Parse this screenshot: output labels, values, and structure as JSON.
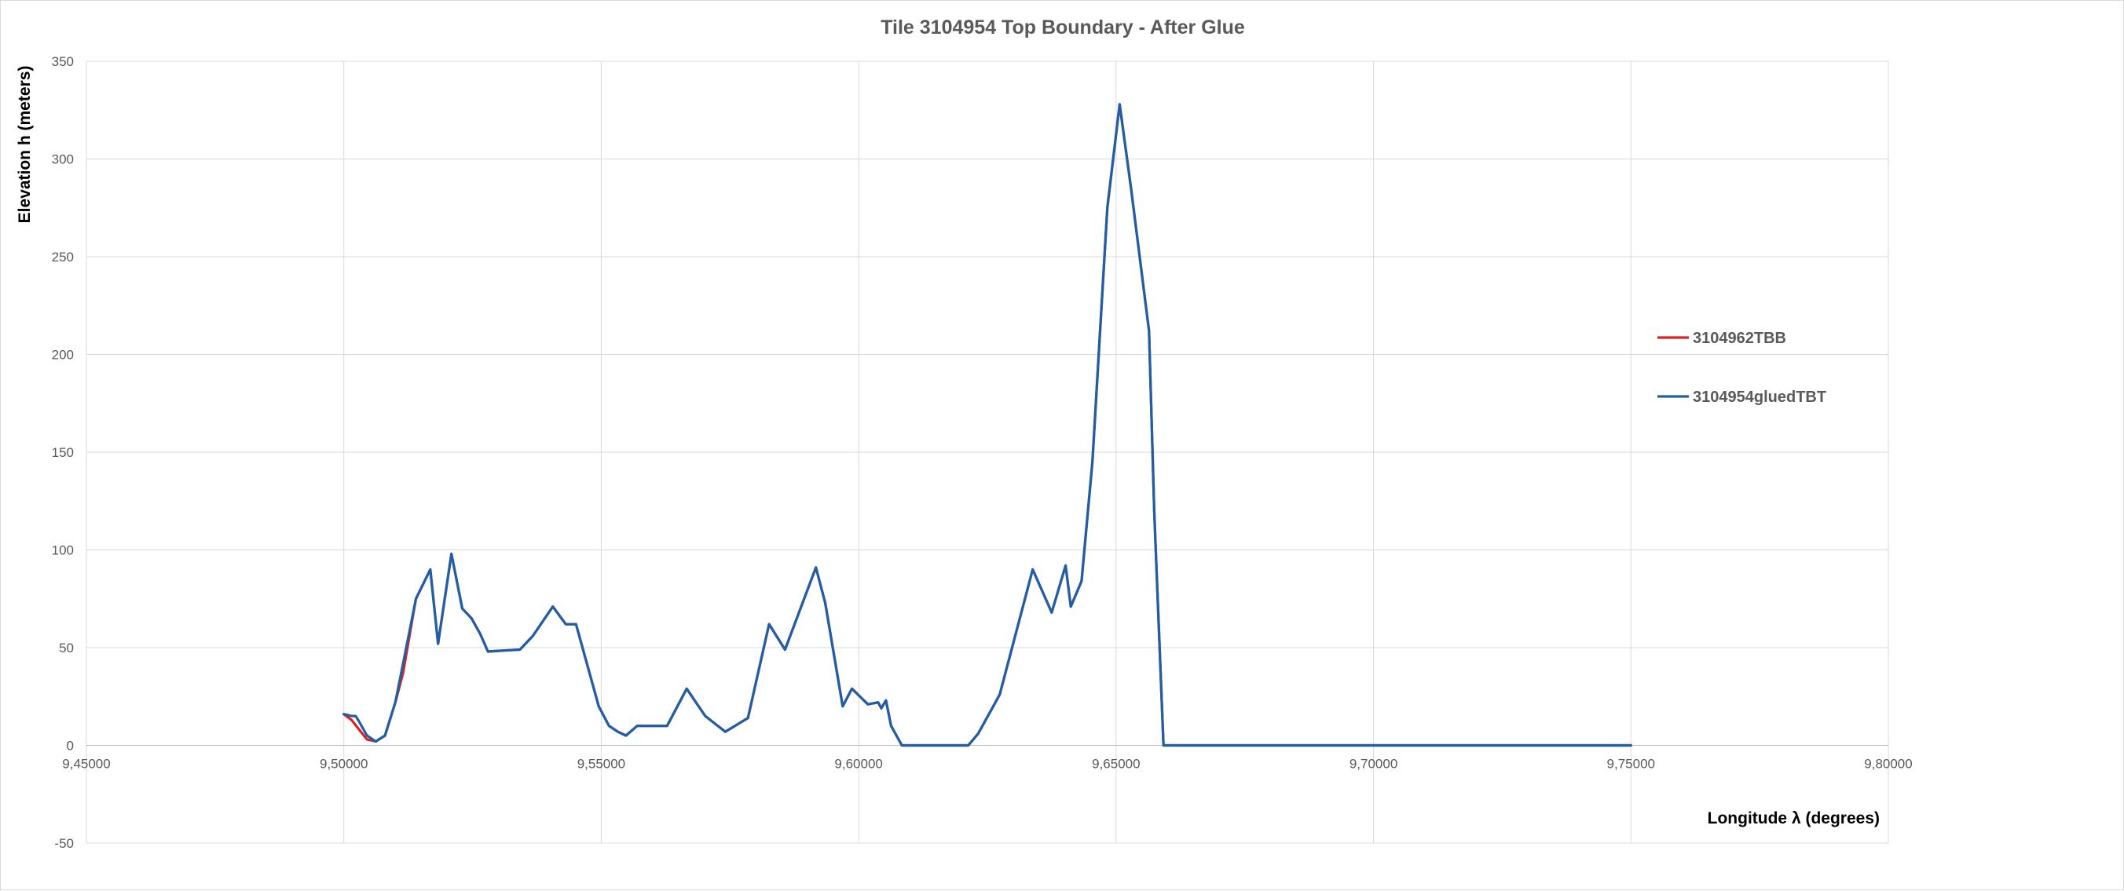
{
  "chart_data": {
    "type": "line",
    "title": "Tile 3104954 Top Boundary - After Glue",
    "xlabel": "Longitude λ (degrees)",
    "ylabel": "Elevation h  (meters)",
    "xlim": [
      9.45,
      9.8
    ],
    "ylim": [
      -50,
      350
    ],
    "x_ticks": [
      "9,45000",
      "9,50000",
      "9,55000",
      "9,60000",
      "9,65000",
      "9,70000",
      "9,75000",
      "9,80000"
    ],
    "y_ticks": [
      "350",
      "300",
      "250",
      "200",
      "150",
      "100",
      "50",
      "0",
      "-50"
    ],
    "grid": true,
    "legend_position": "right",
    "series": [
      {
        "name": "3104962TBB",
        "color": "#e02020",
        "points": [
          [
            9.5,
            16
          ],
          [
            9.5015,
            13
          ],
          [
            9.503,
            8
          ],
          [
            9.5045,
            3
          ],
          [
            9.5062,
            2
          ],
          [
            9.508,
            5
          ],
          [
            9.51,
            22
          ],
          [
            9.5115,
            37
          ],
          [
            9.514,
            75
          ],
          [
            9.5168,
            90
          ],
          [
            9.5183,
            52
          ],
          [
            9.5209,
            98
          ],
          [
            9.523,
            70
          ],
          [
            9.5248,
            65
          ],
          [
            9.5265,
            57
          ],
          [
            9.528,
            48
          ],
          [
            9.531,
            48.5
          ],
          [
            9.5342,
            49
          ],
          [
            9.5367,
            56
          ],
          [
            9.5406,
            71
          ],
          [
            9.5431,
            62
          ],
          [
            9.5451,
            62
          ],
          [
            9.5495,
            20
          ],
          [
            9.5515,
            10
          ],
          [
            9.5532,
            7
          ],
          [
            9.5548,
            5
          ],
          [
            9.557,
            10
          ],
          [
            9.5628,
            10
          ],
          [
            9.5666,
            29
          ],
          [
            9.5702,
            15
          ],
          [
            9.5741,
            7
          ],
          [
            9.5785,
            14
          ],
          [
            9.5826,
            62
          ],
          [
            9.5857,
            49
          ],
          [
            9.5917,
            91
          ],
          [
            9.5935,
            73
          ],
          [
            9.5969,
            20
          ],
          [
            9.5987,
            29
          ],
          [
            9.6018,
            21
          ],
          [
            9.6038,
            22
          ],
          [
            9.6044,
            19
          ],
          [
            9.6053,
            23
          ],
          [
            9.6063,
            10
          ],
          [
            9.6084,
            0
          ],
          [
            9.6213,
            0
          ],
          [
            9.6232,
            6
          ],
          [
            9.6274,
            26
          ],
          [
            9.6338,
            90
          ],
          [
            9.6375,
            68
          ],
          [
            9.6402,
            92
          ],
          [
            9.6412,
            71
          ],
          [
            9.6433,
            84
          ],
          [
            9.6454,
            145
          ],
          [
            9.6483,
            275
          ],
          [
            9.6507,
            328
          ],
          [
            9.6529,
            285
          ],
          [
            9.6564,
            212
          ],
          [
            9.6574,
            120
          ],
          [
            9.6592,
            0
          ],
          [
            9.75,
            0
          ]
        ]
      },
      {
        "name": "3104954gluedTBT",
        "color": "#1f5fa8",
        "points": [
          [
            9.5,
            16
          ],
          [
            9.5015,
            15
          ],
          [
            9.5023,
            15
          ],
          [
            9.503,
            12
          ],
          [
            9.5045,
            5
          ],
          [
            9.5062,
            2
          ],
          [
            9.508,
            5
          ],
          [
            9.51,
            22
          ],
          [
            9.514,
            75
          ],
          [
            9.5168,
            90
          ],
          [
            9.5183,
            52
          ],
          [
            9.5209,
            98
          ],
          [
            9.523,
            70
          ],
          [
            9.5248,
            65
          ],
          [
            9.5265,
            57
          ],
          [
            9.528,
            48
          ],
          [
            9.531,
            48.5
          ],
          [
            9.5342,
            49
          ],
          [
            9.5367,
            56
          ],
          [
            9.5406,
            71
          ],
          [
            9.5431,
            62
          ],
          [
            9.5451,
            62
          ],
          [
            9.5495,
            20
          ],
          [
            9.5515,
            10
          ],
          [
            9.5532,
            7
          ],
          [
            9.5548,
            5
          ],
          [
            9.557,
            10
          ],
          [
            9.5628,
            10
          ],
          [
            9.5666,
            29
          ],
          [
            9.5702,
            15
          ],
          [
            9.5741,
            7
          ],
          [
            9.5785,
            14
          ],
          [
            9.5826,
            62
          ],
          [
            9.5857,
            49
          ],
          [
            9.5917,
            91
          ],
          [
            9.5935,
            73
          ],
          [
            9.5969,
            20
          ],
          [
            9.5987,
            29
          ],
          [
            9.6018,
            21
          ],
          [
            9.6038,
            22
          ],
          [
            9.6044,
            19
          ],
          [
            9.6053,
            23
          ],
          [
            9.6063,
            10
          ],
          [
            9.6084,
            0
          ],
          [
            9.6213,
            0
          ],
          [
            9.6232,
            6
          ],
          [
            9.6274,
            26
          ],
          [
            9.6338,
            90
          ],
          [
            9.6375,
            68
          ],
          [
            9.6402,
            92
          ],
          [
            9.6412,
            71
          ],
          [
            9.6433,
            84
          ],
          [
            9.6454,
            145
          ],
          [
            9.6483,
            275
          ],
          [
            9.6507,
            328
          ],
          [
            9.6529,
            285
          ],
          [
            9.6564,
            212
          ],
          [
            9.6574,
            120
          ],
          [
            9.6592,
            0
          ],
          [
            9.75,
            0
          ]
        ]
      }
    ]
  }
}
